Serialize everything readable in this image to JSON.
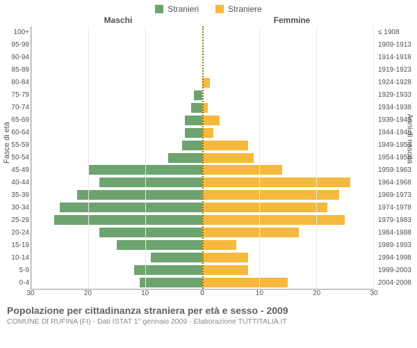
{
  "legend": {
    "male": {
      "label": "Stranieri",
      "color": "#6da36f"
    },
    "female": {
      "label": "Straniere",
      "color": "#f5b93f"
    }
  },
  "column_headers": {
    "left": "Maschi",
    "right": "Femmine"
  },
  "y_axis": {
    "left_title": "Fasce di età",
    "right_title": "Anni di nascita"
  },
  "rows": [
    {
      "age": "100+",
      "birth": "≤ 1908",
      "m": 0,
      "f": 0
    },
    {
      "age": "95-99",
      "birth": "1909-1913",
      "m": 0,
      "f": 0
    },
    {
      "age": "90-94",
      "birth": "1914-1918",
      "m": 0,
      "f": 0
    },
    {
      "age": "85-89",
      "birth": "1919-1923",
      "m": 0,
      "f": 0
    },
    {
      "age": "80-84",
      "birth": "1924-1928",
      "m": 0,
      "f": 1.3
    },
    {
      "age": "75-79",
      "birth": "1929-1933",
      "m": 1.5,
      "f": 0
    },
    {
      "age": "70-74",
      "birth": "1934-1938",
      "m": 2,
      "f": 1
    },
    {
      "age": "65-69",
      "birth": "1939-1943",
      "m": 3,
      "f": 3
    },
    {
      "age": "60-64",
      "birth": "1944-1948",
      "m": 3,
      "f": 2
    },
    {
      "age": "55-59",
      "birth": "1949-1953",
      "m": 3.5,
      "f": 8
    },
    {
      "age": "50-54",
      "birth": "1954-1958",
      "m": 6,
      "f": 9
    },
    {
      "age": "45-49",
      "birth": "1959-1963",
      "m": 20,
      "f": 14
    },
    {
      "age": "40-44",
      "birth": "1964-1968",
      "m": 18,
      "f": 26
    },
    {
      "age": "35-39",
      "birth": "1969-1973",
      "m": 22,
      "f": 24
    },
    {
      "age": "30-34",
      "birth": "1974-1978",
      "m": 25,
      "f": 22
    },
    {
      "age": "25-29",
      "birth": "1979-1983",
      "m": 26,
      "f": 25
    },
    {
      "age": "20-24",
      "birth": "1984-1988",
      "m": 18,
      "f": 17
    },
    {
      "age": "15-19",
      "birth": "1989-1993",
      "m": 15,
      "f": 6
    },
    {
      "age": "10-14",
      "birth": "1994-1998",
      "m": 9,
      "f": 8
    },
    {
      "age": "5-9",
      "birth": "1999-2003",
      "m": 12,
      "f": 8
    },
    {
      "age": "0-4",
      "birth": "2004-2008",
      "m": 11,
      "f": 15
    }
  ],
  "x_axis": {
    "max": 30,
    "ticks_left": [
      30,
      20,
      10,
      0
    ],
    "ticks_right": [
      0,
      10,
      20,
      30
    ]
  },
  "colors": {
    "background": "#ffffff",
    "grid": "#e8e8e8",
    "axis": "#999999",
    "centerline": "#8a7a00",
    "text": "#505050",
    "subtext": "#888888"
  },
  "footer": {
    "title": "Popolazione per cittadinanza straniera per età e sesso - 2009",
    "subtitle": "COMUNE DI RUFINA (FI) - Dati ISTAT 1° gennaio 2009 - Elaborazione TUTTITALIA.IT"
  },
  "chart_type": "population-pyramid"
}
